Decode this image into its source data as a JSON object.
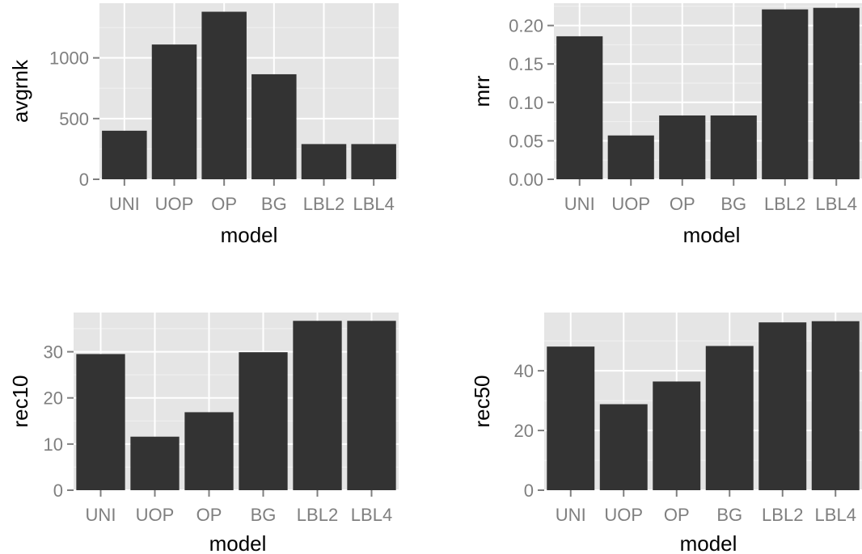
{
  "chart_data": [
    {
      "type": "bar",
      "xlabel": "model",
      "ylabel": "avgrnk",
      "categories": [
        "UNI",
        "UOP",
        "OP",
        "BG",
        "LBL2",
        "LBL4"
      ],
      "values": [
        400,
        1110,
        1380,
        865,
        290,
        290
      ],
      "ylim": [
        0,
        1450
      ],
      "yticks": [
        0,
        500,
        1000
      ],
      "ytick_labels": [
        "0",
        "500",
        "1000"
      ],
      "grid": true,
      "colors": {
        "bar": "#333333",
        "panel": "#e5e5e5",
        "grid": "#ffffff"
      }
    },
    {
      "type": "bar",
      "xlabel": "model",
      "ylabel": "mrr",
      "categories": [
        "UNI",
        "UOP",
        "OP",
        "BG",
        "LBL2",
        "LBL4"
      ],
      "values": [
        0.186,
        0.057,
        0.083,
        0.083,
        0.221,
        0.223
      ],
      "ylim": [
        0,
        0.229
      ],
      "yticks": [
        0.0,
        0.05,
        0.1,
        0.15,
        0.2
      ],
      "ytick_labels": [
        "0.00",
        "0.05",
        "0.10",
        "0.15",
        "0.20"
      ],
      "grid": true,
      "colors": {
        "bar": "#333333",
        "panel": "#e5e5e5",
        "grid": "#ffffff"
      }
    },
    {
      "type": "bar",
      "xlabel": "model",
      "ylabel": "rec10",
      "categories": [
        "UNI",
        "UOP",
        "OP",
        "BG",
        "LBL2",
        "LBL4"
      ],
      "values": [
        29.5,
        11.6,
        16.9,
        29.9,
        36.7,
        36.7
      ],
      "ylim": [
        0,
        38.5
      ],
      "yticks": [
        0,
        10,
        20,
        30
      ],
      "ytick_labels": [
        "0",
        "10",
        "20",
        "30"
      ],
      "grid": true,
      "colors": {
        "bar": "#333333",
        "panel": "#e5e5e5",
        "grid": "#ffffff"
      }
    },
    {
      "type": "bar",
      "xlabel": "model",
      "ylabel": "rec50",
      "categories": [
        "UNI",
        "UOP",
        "OP",
        "BG",
        "LBL2",
        "LBL4"
      ],
      "values": [
        48.1,
        28.8,
        36.4,
        48.3,
        56.2,
        56.6
      ],
      "ylim": [
        0,
        59.5
      ],
      "yticks": [
        0,
        20,
        40
      ],
      "ytick_labels": [
        "0",
        "20",
        "40"
      ],
      "grid": true,
      "colors": {
        "bar": "#333333",
        "panel": "#e5e5e5",
        "grid": "#ffffff"
      }
    }
  ]
}
